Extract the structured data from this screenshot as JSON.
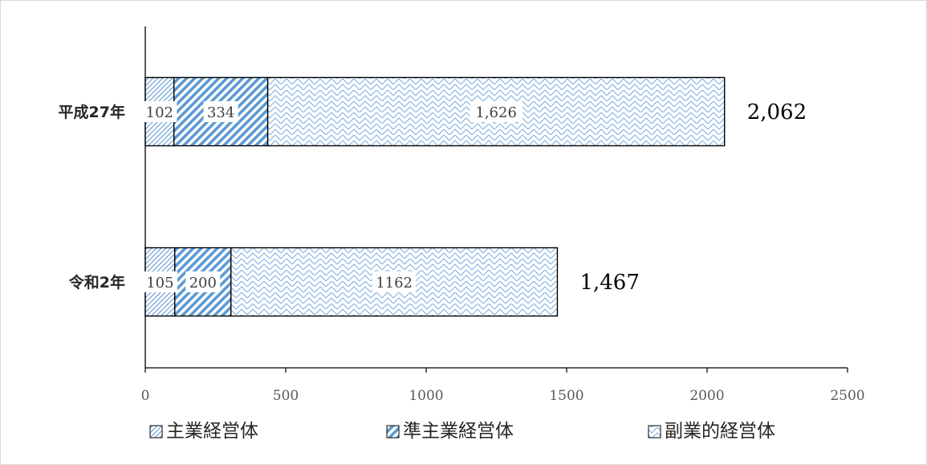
{
  "chart_data": {
    "type": "bar",
    "orientation": "horizontal",
    "stacked": true,
    "categories": [
      "平成27年",
      "令和2年"
    ],
    "series": [
      {
        "name": "主業経営体",
        "values": [
          102,
          105
        ],
        "labels": [
          "102",
          "105"
        ],
        "color": "#5b9bd5"
      },
      {
        "name": "準主業経営体",
        "values": [
          334,
          200
        ],
        "labels": [
          "334",
          "200"
        ],
        "color": "#5b9bd5"
      },
      {
        "name": "副業的経営体",
        "values": [
          1626,
          1162
        ],
        "labels": [
          "1,626",
          "1162"
        ],
        "color": "#5b9bd5"
      }
    ],
    "totals": [
      "2,062",
      "1,467"
    ],
    "xlim": [
      0,
      2500
    ],
    "xticks": [
      "0",
      "500",
      "1000",
      "1500",
      "2000",
      "2500"
    ],
    "xtick_values": [
      0,
      500,
      1000,
      1500,
      2000,
      2500
    ],
    "grid": false,
    "legend_position": "bottom"
  }
}
